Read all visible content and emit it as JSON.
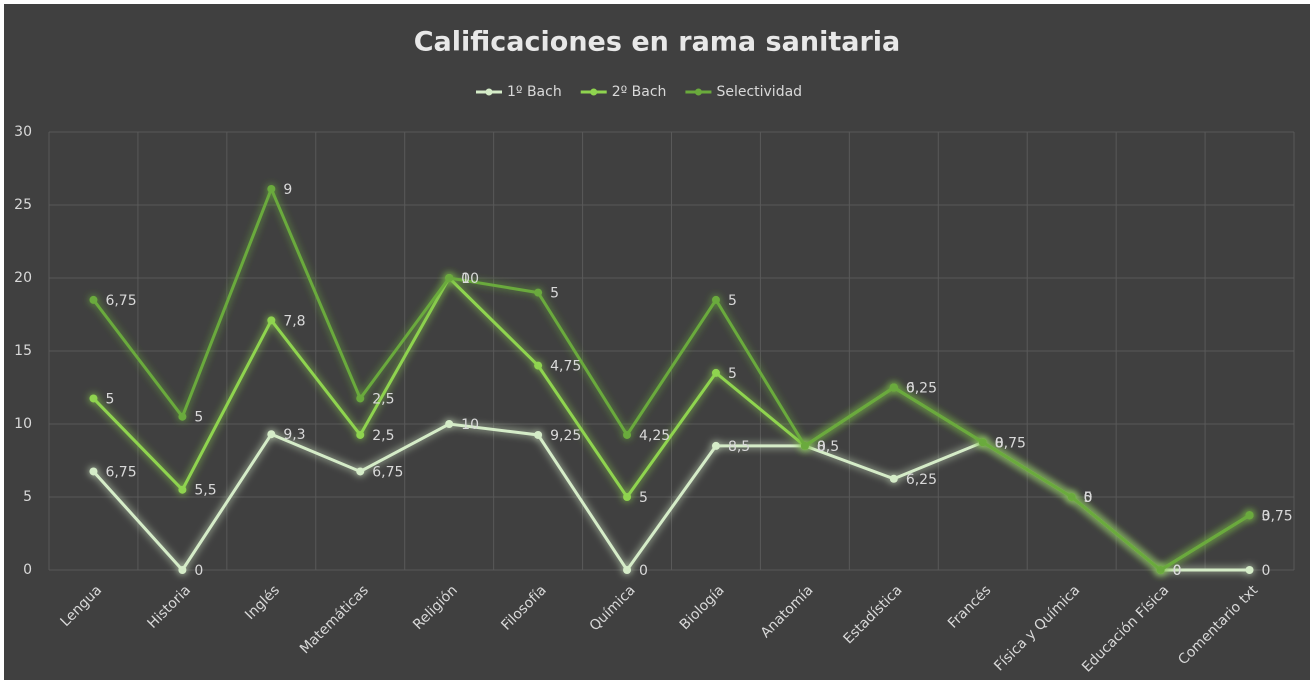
{
  "chart_data": {
    "type": "line",
    "stacked": true,
    "title": "Calificaciones en rama sanitaria",
    "categories": [
      "Lengua",
      "Historia",
      "Inglés",
      "Matemáticas",
      "Religión",
      "Filosofía",
      "Química",
      "Biología",
      "Anatomía",
      "Estadística",
      "Francés",
      "Física y Química",
      "Educación Física",
      "Comentario txt"
    ],
    "series": [
      {
        "name": "1º Bach",
        "color": "#d5ecc8",
        "values": [
          6.75,
          0,
          9.3,
          6.75,
          10,
          9.25,
          0,
          8.5,
          8.5,
          6.25,
          8.75,
          5,
          0,
          0
        ],
        "value_labels": [
          "6,75",
          "0",
          "9,3",
          "6,75",
          "10",
          "9,25",
          "0",
          "8,5",
          "8,5",
          "6,25",
          "8,75",
          "5",
          "0",
          "0"
        ]
      },
      {
        "name": "2º Bach",
        "color": "#8fd44f",
        "values": [
          5,
          5.5,
          7.8,
          2.5,
          10,
          4.75,
          5,
          5,
          0,
          6.25,
          0,
          0,
          0,
          3.75
        ],
        "value_labels": [
          "5",
          "5,5",
          "7,8",
          "2,5",
          "10",
          "4,75",
          "5",
          "5",
          "0",
          "6,25",
          "0",
          "0",
          "0",
          "3,75"
        ]
      },
      {
        "name": "Selectividad",
        "color": "#6aaa3c",
        "values": [
          6.75,
          5,
          9,
          2.5,
          0,
          5,
          4.25,
          5,
          0,
          0,
          0,
          0,
          0,
          0
        ],
        "value_labels": [
          "6,75",
          "5",
          "9",
          "2,5",
          "0",
          "5",
          "4,25",
          "5",
          "0",
          "0",
          "0",
          "0",
          "0",
          "0"
        ]
      }
    ],
    "ylim": [
      0,
      30
    ],
    "yticks": [
      0,
      5,
      10,
      15,
      20,
      25,
      30
    ],
    "grid": true,
    "legend": "top"
  }
}
